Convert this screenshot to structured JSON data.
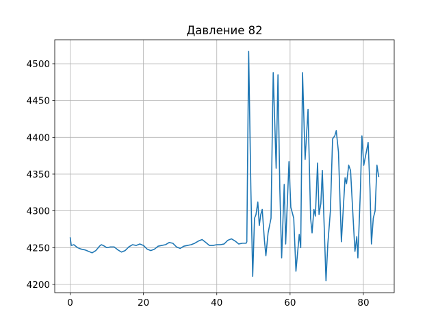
{
  "chart_data": {
    "type": "line",
    "title": "Давление 82",
    "x": [
      0,
      0.3,
      1,
      2,
      3,
      4,
      5,
      6,
      7,
      8,
      8.5,
      9,
      10,
      11,
      12,
      13,
      14,
      15,
      16,
      17,
      18,
      19,
      20,
      21,
      22,
      23,
      24,
      25,
      26,
      27,
      28,
      29,
      30,
      31,
      32,
      33,
      34,
      35,
      36,
      37,
      38,
      39,
      40,
      41,
      42,
      43,
      44,
      45,
      46,
      47,
      48,
      48.2,
      48.7,
      49.3,
      49.8,
      50.3,
      50.7,
      51.2,
      51.6,
      52,
      52.4,
      53,
      53.4,
      54,
      54.8,
      55.4,
      56.2,
      56.7,
      57.2,
      57.7,
      58.4,
      58.8,
      59.7,
      60.2,
      61,
      61.6,
      62.5,
      62.9,
      63.4,
      64.1,
      64.9,
      65.6,
      66,
      66.5,
      66.9,
      67.5,
      67.9,
      68.4,
      68.8,
      69.8,
      70.3,
      71,
      71.6,
      72.2,
      72.6,
      73.2,
      74,
      75,
      75.4,
      76,
      76.5,
      77.2,
      77.7,
      78.2,
      78.5,
      79.2,
      79.6,
      80.1,
      80.8,
      81.3,
      81.8,
      82.2,
      82.7,
      83.2,
      83.7,
      84.2
    ],
    "series": [
      {
        "color": "#1f77b4",
        "values": [
          4264,
          4253,
          4254,
          4250,
          4248,
          4247,
          4245,
          4243,
          4246,
          4252,
          4254,
          4253,
          4250,
          4251,
          4251,
          4247,
          4244,
          4246,
          4251,
          4254,
          4253,
          4255,
          4253,
          4248,
          4246,
          4248,
          4252,
          4253,
          4254,
          4257,
          4256,
          4251,
          4249,
          4252,
          4253,
          4254,
          4256,
          4259,
          4261,
          4257,
          4253,
          4253,
          4254,
          4254,
          4255,
          4260,
          4262,
          4259,
          4255,
          4256,
          4256,
          4258,
          4517,
          4330,
          4211,
          4290,
          4295,
          4312,
          4280,
          4295,
          4302,
          4260,
          4239,
          4270,
          4290,
          4488,
          4358,
          4485,
          4330,
          4236,
          4336,
          4255,
          4367,
          4305,
          4290,
          4218,
          4268,
          4250,
          4488,
          4370,
          4438,
          4290,
          4270,
          4302,
          4293,
          4365,
          4295,
          4310,
          4355,
          4205,
          4255,
          4300,
          4398,
          4402,
          4409,
          4380,
          4258,
          4345,
          4337,
          4362,
          4355,
          4290,
          4245,
          4265,
          4236,
          4330,
          4402,
          4362,
          4380,
          4393,
          4330,
          4255,
          4290,
          4300,
          4362,
          4346
        ]
      }
    ],
    "xlim": [
      -4.21,
      88.41
    ],
    "ylim": [
      4188.8,
      4532.6
    ],
    "xticks": [
      0,
      20,
      40,
      60,
      80
    ],
    "yticks": [
      4200,
      4250,
      4300,
      4350,
      4400,
      4450,
      4500
    ],
    "grid": true
  }
}
